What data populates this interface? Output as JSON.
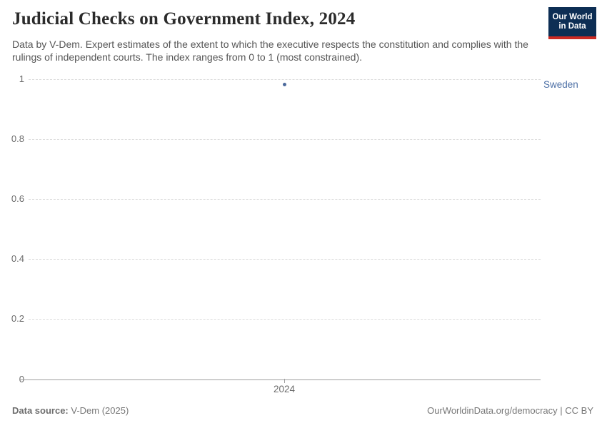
{
  "header": {
    "title": "Judicial Checks on Government Index, 2024",
    "subtitle": "Data by V-Dem. Expert estimates of the extent to which the executive respects the constitution and complies with the rulings of independent courts. The index ranges from 0 to 1 (most constrained).",
    "logo": {
      "line1": "Our World",
      "line2": "in Data"
    }
  },
  "chart_data": {
    "type": "scatter",
    "title": "Judicial Checks on Government Index, 2024",
    "x": [
      2024
    ],
    "xticks": [
      "2024"
    ],
    "series": [
      {
        "name": "Sweden",
        "values": [
          0.98
        ]
      }
    ],
    "ylim": [
      0,
      1
    ],
    "yticks": [
      "0",
      "0.2",
      "0.4",
      "0.6",
      "0.8",
      "1"
    ],
    "grid": "horizontal-dashed",
    "legend_position": "inline-right-of-point"
  },
  "footer": {
    "source_label": "Data source:",
    "source_value": " V-Dem (2025)",
    "credit": "OurWorldinData.org/democracy | CC BY"
  },
  "colors": {
    "series_blue": "#4c6a9c",
    "entity_label_blue": "#4c6fa5",
    "logo_navy": "#0d2e54",
    "logo_red": "#cc2a23",
    "gridline": "#dcdcdc",
    "axis": "#9e9e9e",
    "title_text": "#2b2b2b",
    "subtitle_text": "#555555",
    "tick_text": "#6b6b6b",
    "footer_text": "#777777"
  }
}
